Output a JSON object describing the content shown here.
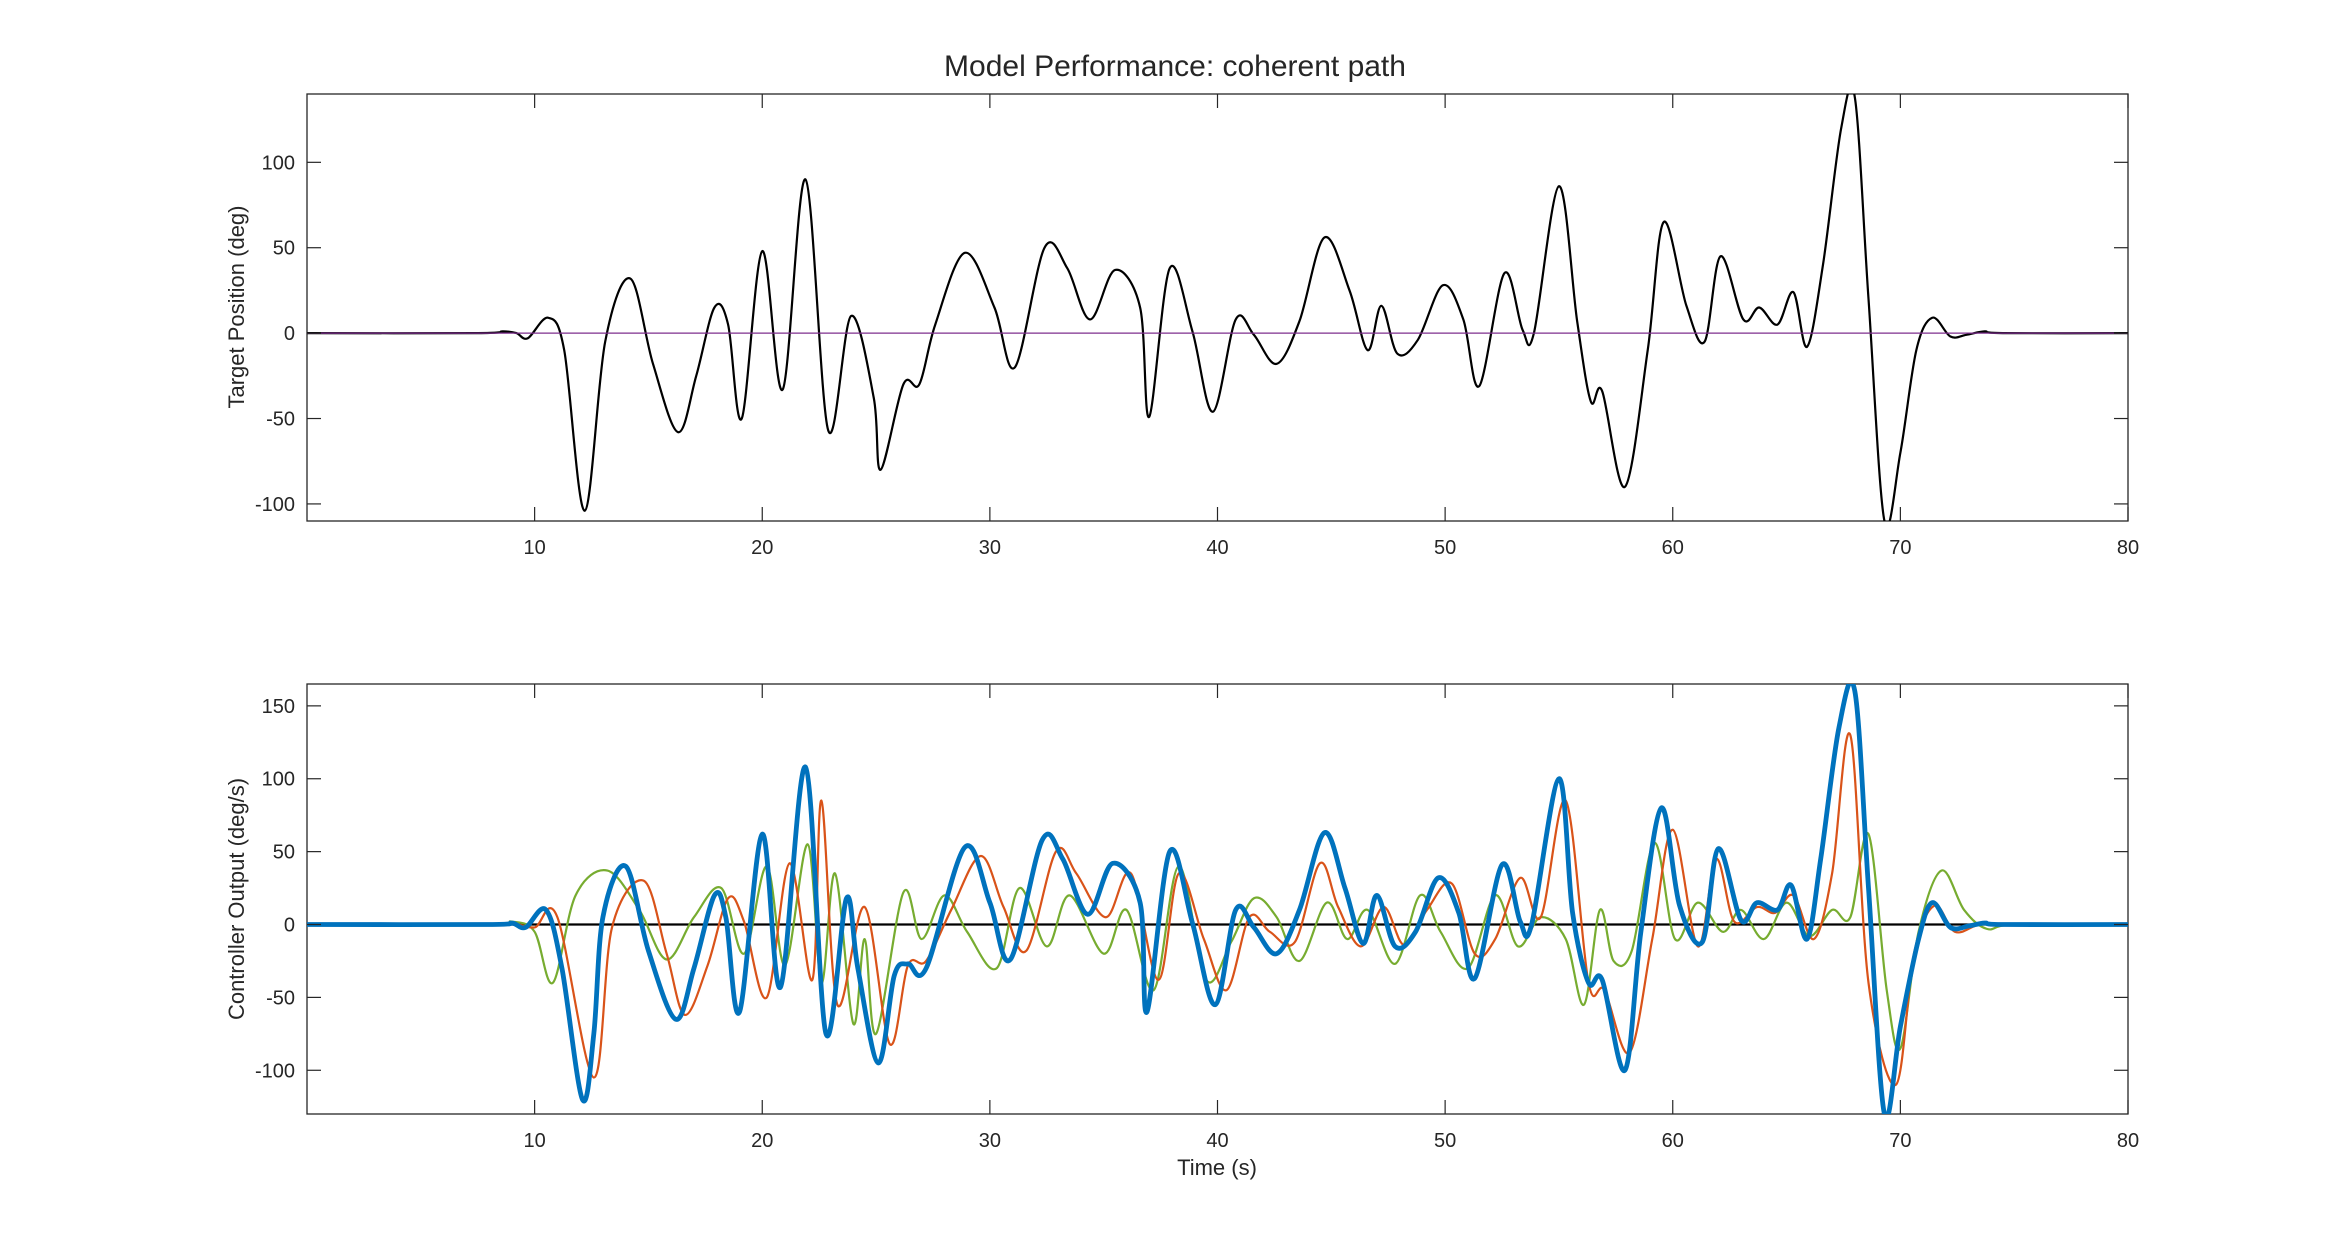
{
  "figure": {
    "title": "Model Performance: coherent path"
  },
  "colors": {
    "target": "#000000",
    "reference": "#7E2F8E",
    "zero_line": "#000000",
    "blue": "#0072BD",
    "orange": "#D95319",
    "green": "#77AC30",
    "axes": "#262626"
  },
  "chart_data": [
    {
      "type": "line",
      "title": "Model Performance: coherent path",
      "xlabel": "",
      "ylabel": "Target Position (deg)",
      "xlim": [
        0,
        80
      ],
      "ylim": [
        -110,
        140
      ],
      "xticks": [
        10,
        20,
        30,
        40,
        50,
        60,
        70,
        80
      ],
      "yticks": [
        -100,
        -50,
        0,
        50,
        100
      ],
      "xtick_labels": [
        "10",
        "20",
        "30",
        "40",
        "50",
        "60",
        "70",
        "80"
      ],
      "ytick_labels": [
        "-100",
        "-50",
        "0",
        "50",
        "100"
      ],
      "grid": false,
      "series": [
        {
          "color": "black",
          "x": [
            0,
            7.5,
            8.6,
            9.2,
            9.7,
            10.6,
            11.3,
            12.2,
            13.1,
            14.2,
            15.2,
            16.3,
            17.1,
            17.9,
            18.5,
            19.1,
            20.0,
            20.9,
            21.9,
            22.9,
            23.9,
            24.9,
            25.2,
            26.2,
            26.9,
            27.6,
            28.9,
            30.2,
            31.1,
            32.4,
            33.4,
            34.4,
            35.5,
            36.6,
            37.0,
            37.9,
            38.9,
            39.8,
            40.8,
            41.6,
            42.6,
            43.6,
            44.7,
            45.8,
            46.6,
            47.2,
            47.9,
            48.8,
            49.9,
            50.8,
            51.5,
            52.6,
            53.4,
            53.9,
            55.0,
            55.8,
            56.4,
            56.9,
            57.9,
            58.9,
            59.6,
            60.6,
            61.4,
            62.1,
            63.1,
            63.8,
            64.6,
            65.3,
            65.9,
            66.6,
            67.4,
            68.0,
            68.6,
            69.3,
            70.0,
            70.7,
            71.4,
            72.2,
            72.9,
            73.7,
            74.5,
            80
          ],
          "y": [
            0,
            0,
            1,
            0,
            -3,
            9,
            -10,
            -104,
            -5,
            32,
            -18,
            -58,
            -25,
            15,
            5,
            -50,
            48,
            -33,
            90,
            -57,
            10,
            -38,
            -80,
            -30,
            -30,
            5,
            47,
            15,
            -20,
            50,
            38,
            8,
            37,
            15,
            -49,
            38,
            1,
            -46,
            8,
            -1,
            -18,
            7,
            56,
            25,
            -10,
            16,
            -12,
            -4,
            28,
            8,
            -31,
            35,
            2,
            0,
            86,
            7,
            -40,
            -34,
            -90,
            -10,
            65,
            16,
            -5,
            45,
            8,
            15,
            5,
            24,
            -8,
            40,
            120,
            138,
            20,
            -110,
            -70,
            -10,
            9,
            -2,
            -1,
            1,
            0,
            0
          ]
        },
        {
          "color": "purple",
          "x": [
            0,
            80
          ],
          "y": [
            0,
            0
          ]
        }
      ]
    },
    {
      "type": "line",
      "title": "",
      "xlabel": "Time (s)",
      "ylabel": "Controller Output (deg/s)",
      "xlim": [
        0,
        80
      ],
      "ylim": [
        -130,
        165
      ],
      "xticks": [
        10,
        20,
        30,
        40,
        50,
        60,
        70,
        80
      ],
      "yticks": [
        -100,
        -50,
        0,
        50,
        100,
        150
      ],
      "xtick_labels": [
        "10",
        "20",
        "30",
        "40",
        "50",
        "60",
        "70",
        "80"
      ],
      "ytick_labels": [
        "-100",
        "-50",
        "0",
        "50",
        "100",
        "150"
      ],
      "grid": false,
      "series": [
        {
          "color": "black",
          "x": [
            0,
            80
          ],
          "y": [
            0,
            0
          ]
        },
        {
          "color": "green",
          "x": [
            0,
            8.0,
            9.0,
            10.0,
            10.8,
            11.8,
            13.2,
            14.6,
            15.8,
            17.0,
            18.2,
            19.2,
            20.2,
            21.0,
            22.0,
            22.6,
            23.2,
            24.0,
            24.5,
            25.0,
            26.2,
            27.0,
            28.0,
            29.0,
            30.3,
            31.3,
            32.5,
            33.5,
            35.0,
            36.0,
            37.2,
            38.3,
            39.5,
            40.6,
            41.6,
            42.6,
            43.6,
            44.8,
            45.7,
            46.6,
            47.8,
            48.9,
            49.8,
            51.0,
            52.2,
            53.2,
            54.2,
            55.3,
            56.1,
            56.8,
            57.4,
            58.2,
            59.2,
            60.1,
            61.1,
            62.2,
            63.0,
            64.0,
            65.0,
            66.0,
            67.0,
            67.8,
            68.6,
            69.4,
            70.0,
            70.8,
            71.8,
            72.8,
            73.8,
            75,
            80
          ],
          "y": [
            0,
            0,
            2,
            -5,
            -40,
            20,
            37,
            10,
            -24,
            5,
            25,
            -20,
            40,
            -28,
            55,
            -40,
            35,
            -68,
            -10,
            -75,
            22,
            -10,
            20,
            -5,
            -30,
            25,
            -15,
            20,
            -20,
            10,
            -45,
            40,
            -38,
            -12,
            18,
            5,
            -25,
            15,
            -10,
            10,
            -27,
            20,
            -5,
            -30,
            20,
            -15,
            5,
            -10,
            -55,
            10,
            -25,
            -18,
            56,
            -10,
            15,
            -5,
            10,
            -10,
            15,
            -8,
            10,
            5,
            62,
            -45,
            -85,
            -5,
            37,
            10,
            -3,
            0,
            0
          ]
        },
        {
          "color": "orange",
          "x": [
            0,
            8.0,
            9.0,
            10.0,
            11.0,
            12.6,
            13.4,
            14.8,
            15.8,
            16.6,
            17.6,
            18.5,
            19.2,
            20.2,
            21.2,
            22.2,
            22.6,
            23.3,
            24.5,
            25.6,
            26.4,
            27.2,
            28.3,
            29.6,
            30.6,
            31.6,
            32.9,
            33.8,
            35.1,
            36.2,
            37.4,
            38.3,
            39.4,
            40.4,
            41.4,
            42.3,
            43.4,
            44.5,
            45.3,
            46.3,
            47.3,
            48.2,
            49.2,
            50.3,
            51.3,
            52.2,
            53.3,
            54.2,
            55.3,
            56.3,
            57.0,
            58.1,
            59.1,
            60.0,
            61.1,
            61.9,
            62.7,
            63.7,
            64.5,
            65.3,
            66.2,
            67.0,
            67.8,
            68.6,
            69.8,
            70.6,
            71.5,
            72.4,
            73.5,
            75,
            80
          ],
          "y": [
            0,
            0,
            1,
            -2,
            5,
            -105,
            -2,
            30,
            -20,
            -62,
            -28,
            18,
            2,
            -50,
            42,
            -38,
            85,
            -55,
            12,
            -82,
            -28,
            -25,
            10,
            47,
            12,
            -18,
            50,
            35,
            5,
            35,
            -38,
            35,
            -10,
            -45,
            5,
            -5,
            -12,
            42,
            12,
            -15,
            12,
            -14,
            10,
            28,
            -20,
            -10,
            32,
            5,
            85,
            -40,
            -45,
            -88,
            -10,
            65,
            -15,
            45,
            2,
            12,
            8,
            20,
            -10,
            35,
            130,
            -40,
            -110,
            -20,
            13,
            -5,
            0,
            0,
            0
          ]
        },
        {
          "color": "blue",
          "x": [
            0,
            8.0,
            9.0,
            9.6,
            10.5,
            11.2,
            12.1,
            12.6,
            13.0,
            14.0,
            15.0,
            16.2,
            17.0,
            17.9,
            18.4,
            19.0,
            20.0,
            20.8,
            21.9,
            22.8,
            23.7,
            24.2,
            25.1,
            25.8,
            26.4,
            27.2,
            28.9,
            30.0,
            30.9,
            32.3,
            33.2,
            34.3,
            35.4,
            36.6,
            36.9,
            37.9,
            38.9,
            39.9,
            40.8,
            41.6,
            42.6,
            43.6,
            44.7,
            45.6,
            46.4,
            47.0,
            47.8,
            48.7,
            49.7,
            50.6,
            51.3,
            52.5,
            53.3,
            53.8,
            55.0,
            55.6,
            56.3,
            56.9,
            57.9,
            58.6,
            59.5,
            60.3,
            61.3,
            62.0,
            63.0,
            63.7,
            64.6,
            65.2,
            65.9,
            66.5,
            67.3,
            68.0,
            68.6,
            69.3,
            70.0,
            70.8,
            71.4,
            72.2,
            73.0,
            73.7,
            74.5,
            80
          ],
          "y": [
            0,
            0,
            1,
            -2,
            10,
            -30,
            -120,
            -75,
            5,
            40,
            -18,
            -65,
            -30,
            20,
            5,
            -60,
            62,
            -43,
            108,
            -75,
            18,
            -30,
            -95,
            -35,
            -27,
            -30,
            53,
            15,
            -24,
            58,
            45,
            7,
            42,
            15,
            -60,
            50,
            1,
            -55,
            10,
            -2,
            -20,
            10,
            63,
            25,
            -13,
            20,
            -15,
            -5,
            32,
            8,
            -37,
            41,
            2,
            0,
            100,
            8,
            -40,
            -38,
            -100,
            -5,
            80,
            13,
            -12,
            52,
            3,
            15,
            10,
            27,
            -10,
            45,
            135,
            160,
            25,
            -130,
            -70,
            -10,
            15,
            -2,
            -1,
            1,
            0,
            0
          ]
        }
      ]
    }
  ]
}
